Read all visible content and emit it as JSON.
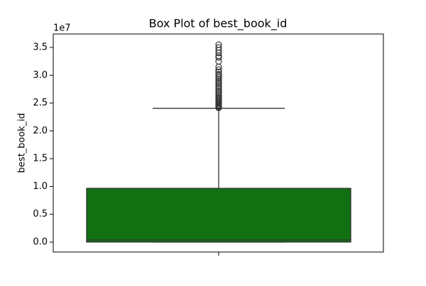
{
  "chart_data": {
    "type": "box",
    "title": "Box Plot of best_book_id",
    "ylabel": "best_book_id",
    "offset_label": "1e7",
    "color": "#117011",
    "box": {
      "whisker_low": 1,
      "q1": 10000,
      "median": 380000,
      "q3": 9670000,
      "whisker_high": 24050000,
      "outliers": [
        24150000,
        24300000,
        24450000,
        24600000,
        24800000,
        25000000,
        25200000,
        25400000,
        25600000,
        25800000,
        26000000,
        26300000,
        26600000,
        26900000,
        27200000,
        27500000,
        27800000,
        28100000,
        28400000,
        28700000,
        29000000,
        29300000,
        29600000,
        29900000,
        30200000,
        30600000,
        31000000,
        31500000,
        32500000,
        33200000,
        33500000,
        34000000,
        34500000,
        35000000,
        35500000
      ]
    },
    "ylim": [
      -1780000,
      37420000
    ],
    "yticks": [
      {
        "value": 0,
        "label": "0.0"
      },
      {
        "value": 5000000,
        "label": "0.5"
      },
      {
        "value": 10000000,
        "label": "1.0"
      },
      {
        "value": 15000000,
        "label": "1.5"
      },
      {
        "value": 20000000,
        "label": "2.0"
      },
      {
        "value": 25000000,
        "label": "2.5"
      },
      {
        "value": 30000000,
        "label": "3.0"
      },
      {
        "value": 35000000,
        "label": "3.5"
      }
    ]
  }
}
